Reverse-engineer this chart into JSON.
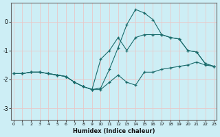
{
  "xlabel": "Humidex (Indice chaleur)",
  "bg_color": "#cdeef5",
  "grid_color": "#b8dde5",
  "line_color": "#1a6b6b",
  "xlim": [
    -0.3,
    23.3
  ],
  "ylim": [
    -3.4,
    0.65
  ],
  "yticks": [
    0,
    -1,
    -2,
    -3
  ],
  "xticks": [
    0,
    1,
    2,
    3,
    4,
    5,
    6,
    7,
    8,
    9,
    10,
    11,
    12,
    13,
    14,
    15,
    16,
    17,
    18,
    19,
    20,
    21,
    22,
    23
  ],
  "line1_x": [
    0,
    1,
    2,
    3,
    4,
    5,
    6,
    7,
    8,
    9,
    10,
    11,
    12,
    13,
    14,
    15,
    16,
    17,
    18,
    19,
    20,
    21,
    22,
    23
  ],
  "line1_y": [
    -1.8,
    -1.8,
    -1.75,
    -1.75,
    -1.8,
    -1.85,
    -1.9,
    -2.1,
    -2.25,
    -2.35,
    -2.35,
    -2.1,
    -1.85,
    -2.1,
    -2.2,
    -1.75,
    -1.75,
    -1.65,
    -1.6,
    -1.55,
    -1.5,
    -1.4,
    -1.5,
    -1.55
  ],
  "line2_x": [
    0,
    1,
    2,
    3,
    4,
    5,
    6,
    7,
    8,
    9,
    10,
    11,
    12,
    13,
    14,
    15,
    16,
    17,
    18,
    19,
    20,
    21,
    22,
    23
  ],
  "line2_y": [
    -1.8,
    -1.8,
    -1.75,
    -1.75,
    -1.8,
    -1.85,
    -1.9,
    -2.1,
    -2.25,
    -2.35,
    -1.3,
    -1.0,
    -0.55,
    -1.0,
    -0.55,
    -0.45,
    -0.45,
    -0.45,
    -0.55,
    -0.6,
    -1.0,
    -1.05,
    -1.45,
    -1.55
  ],
  "line3_x": [
    0,
    1,
    2,
    3,
    4,
    5,
    6,
    7,
    8,
    9,
    10,
    11,
    12,
    13,
    14,
    15,
    16,
    17,
    18,
    19,
    20,
    21,
    22,
    23
  ],
  "line3_y": [
    -1.8,
    -1.8,
    -1.75,
    -1.75,
    -1.8,
    -1.85,
    -1.9,
    -2.1,
    -2.25,
    -2.35,
    -2.3,
    -1.65,
    -0.9,
    -0.1,
    0.42,
    0.3,
    0.07,
    -0.45,
    -0.55,
    -0.6,
    -1.0,
    -1.05,
    -1.45,
    -1.55
  ]
}
